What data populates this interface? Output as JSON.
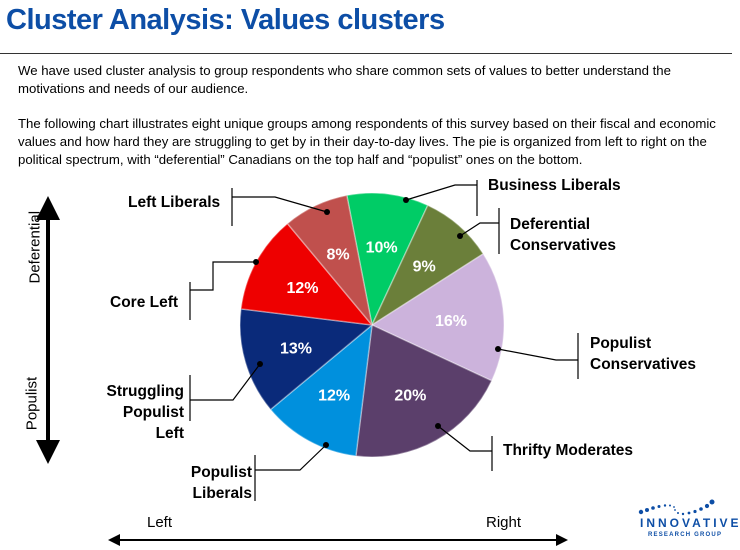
{
  "title": "Cluster Analysis: Values clusters",
  "paragraphs": [
    "We have used cluster analysis to group respondents who share common sets of values to better understand the motivations and needs of our audience.",
    "The following chart illustrates eight unique groups among respondents of this survey based on their fiscal and economic values and how hard they are struggling to get by in their day-to-day lives. The pie is organized from left to right on the political spectrum, with “deferential” Canadians on the top half and “populist” ones on the bottom."
  ],
  "axes": {
    "top": "Deferential",
    "bottom": "Populist",
    "left": "Left",
    "right": "Right"
  },
  "logo": {
    "line1": "INNOVATIVE",
    "line2": "RESEARCH GROUP"
  },
  "chart_data": {
    "type": "pie",
    "start_angle_deg": -11,
    "direction": "clockwise",
    "categories": [
      "Business Liberals",
      "Deferential Conservatives",
      "Populist Conservatives",
      "Thrifty Moderates",
      "Populist Liberals",
      "Struggling Populist Left",
      "Core Left",
      "Left Liberals"
    ],
    "values": [
      10,
      9,
      16,
      20,
      12,
      13,
      12,
      8
    ],
    "labels": [
      "10%",
      "9%",
      "16%",
      "20%",
      "12%",
      "13%",
      "12%",
      "8%"
    ],
    "colors": [
      "#00cc66",
      "#6b7f3a",
      "#ccb3dc",
      "#5b3f6b",
      "#0090dd",
      "#0a2a7a",
      "#ee0000",
      "#c0504d"
    ]
  }
}
